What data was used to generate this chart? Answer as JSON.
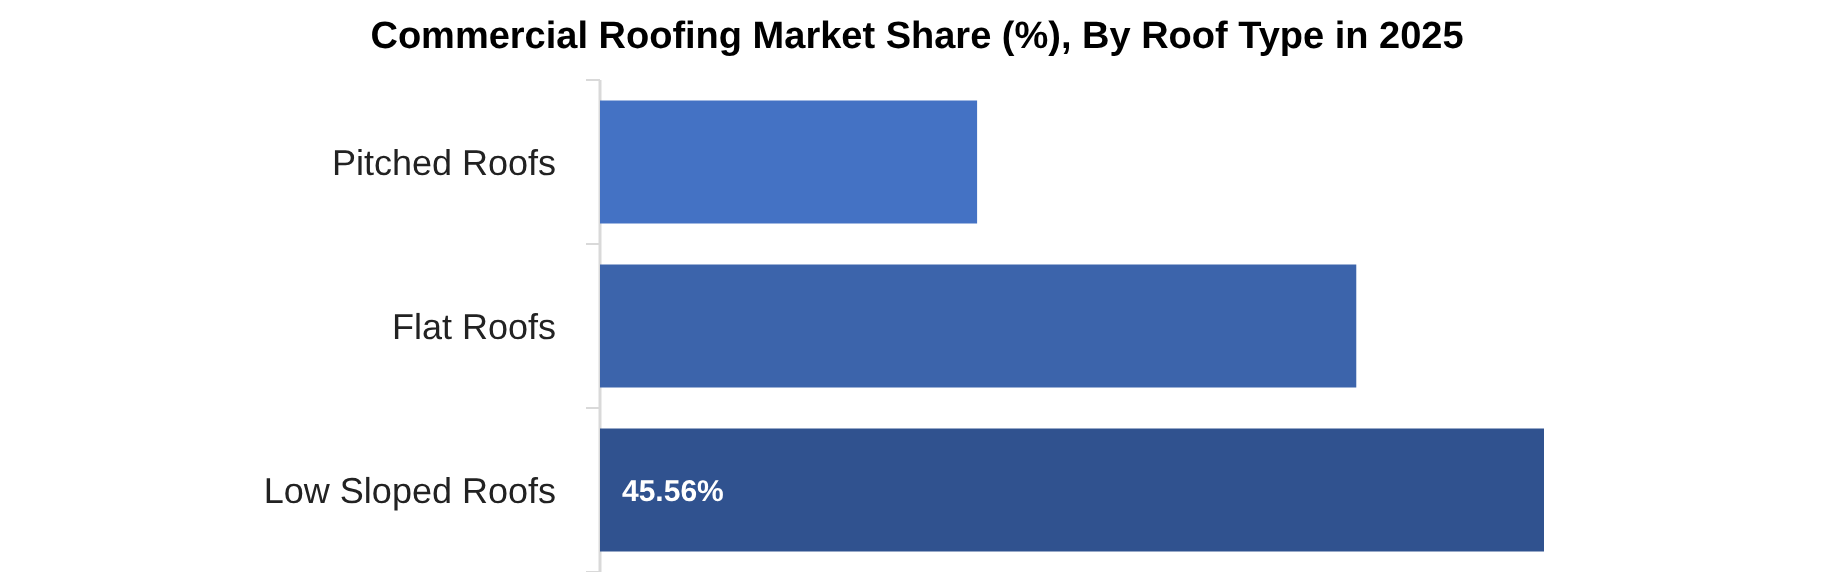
{
  "chart_data": {
    "type": "bar",
    "orientation": "horizontal",
    "title": "Commercial Roofing Market Share (%), By Roof Type in 2025",
    "categories": [
      "Pitched Roofs",
      "Flat Roofs",
      "Low Sloped Roofs"
    ],
    "values": [
      18.2,
      36.5,
      45.56
    ],
    "colors": [
      "#4472c4",
      "#3c64ab",
      "#30528f"
    ],
    "value_labels": [
      null,
      null,
      "45.56%"
    ]
  }
}
